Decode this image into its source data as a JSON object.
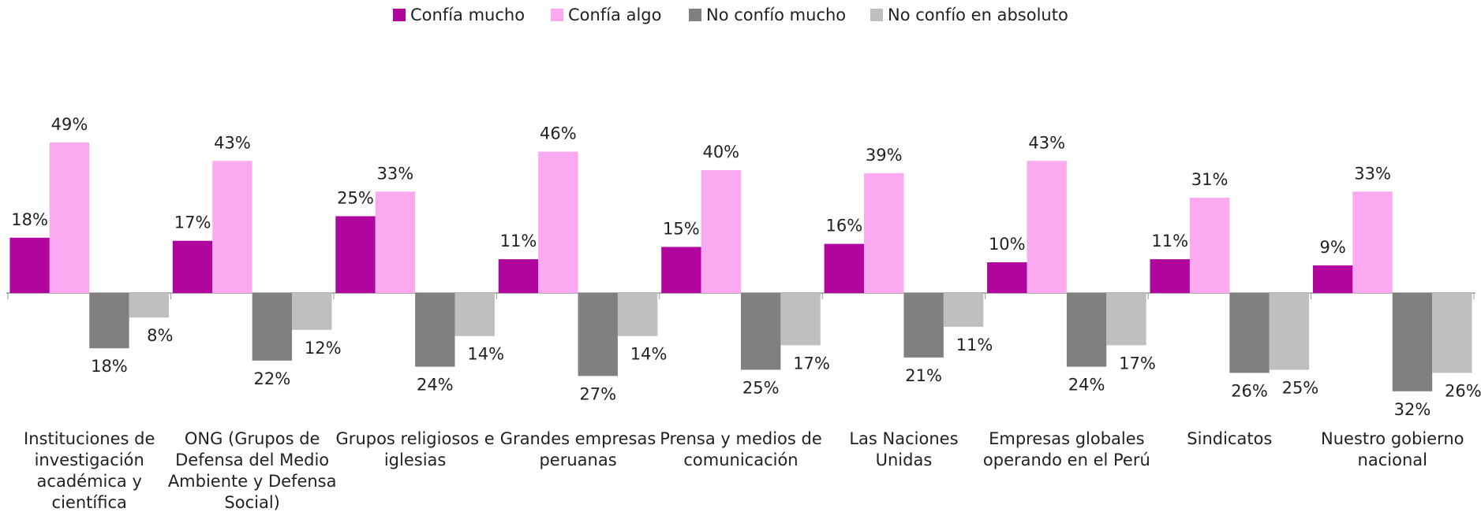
{
  "chart_data": {
    "type": "bar",
    "categories": [
      "Instituciones de investigación académica y científica",
      "ONG (Grupos de Defensa del Medio Ambiente y Defensa Social)",
      "Grupos religiosos e iglesias",
      "Grandes empresas peruanas",
      "Prensa y medios de comunicación",
      "Las Naciones Unidas",
      "Empresas globales operando en el Perú",
      "Sindicatos",
      "Nuestro gobierno nacional"
    ],
    "series": [
      {
        "name": "Confía mucho",
        "color": "#b0069e",
        "side": "above",
        "values": [
          18,
          17,
          25,
          11,
          15,
          16,
          10,
          11,
          9
        ],
        "value_labels": [
          "18%",
          "17%",
          "25%",
          "11%",
          "15%",
          "16%",
          "10%",
          "11%",
          "9%"
        ]
      },
      {
        "name": "Confía algo",
        "color": "#fbaaf2",
        "side": "above",
        "values": [
          49,
          43,
          33,
          46,
          40,
          39,
          43,
          31,
          33
        ],
        "value_labels": [
          "49%",
          "43%",
          "33%",
          "46%",
          "40%",
          "39%",
          "43%",
          "31%",
          "33%"
        ]
      },
      {
        "name": "No confío mucho",
        "color": "#808080",
        "side": "below",
        "values": [
          18,
          22,
          24,
          27,
          25,
          21,
          24,
          26,
          32
        ],
        "value_labels": [
          "18%",
          "22%",
          "24%",
          "27%",
          "25%",
          "21%",
          "24%",
          "26%",
          "32%"
        ]
      },
      {
        "name": "No confío en absoluto",
        "color": "#bfbfbf",
        "side": "below",
        "values": [
          8,
          12,
          14,
          14,
          17,
          11,
          17,
          25,
          26
        ],
        "value_labels": [
          "8%",
          "12%",
          "14%",
          "14%",
          "17%",
          "11%",
          "17%",
          "25%",
          "26%"
        ]
      }
    ],
    "legend": "top"
  }
}
